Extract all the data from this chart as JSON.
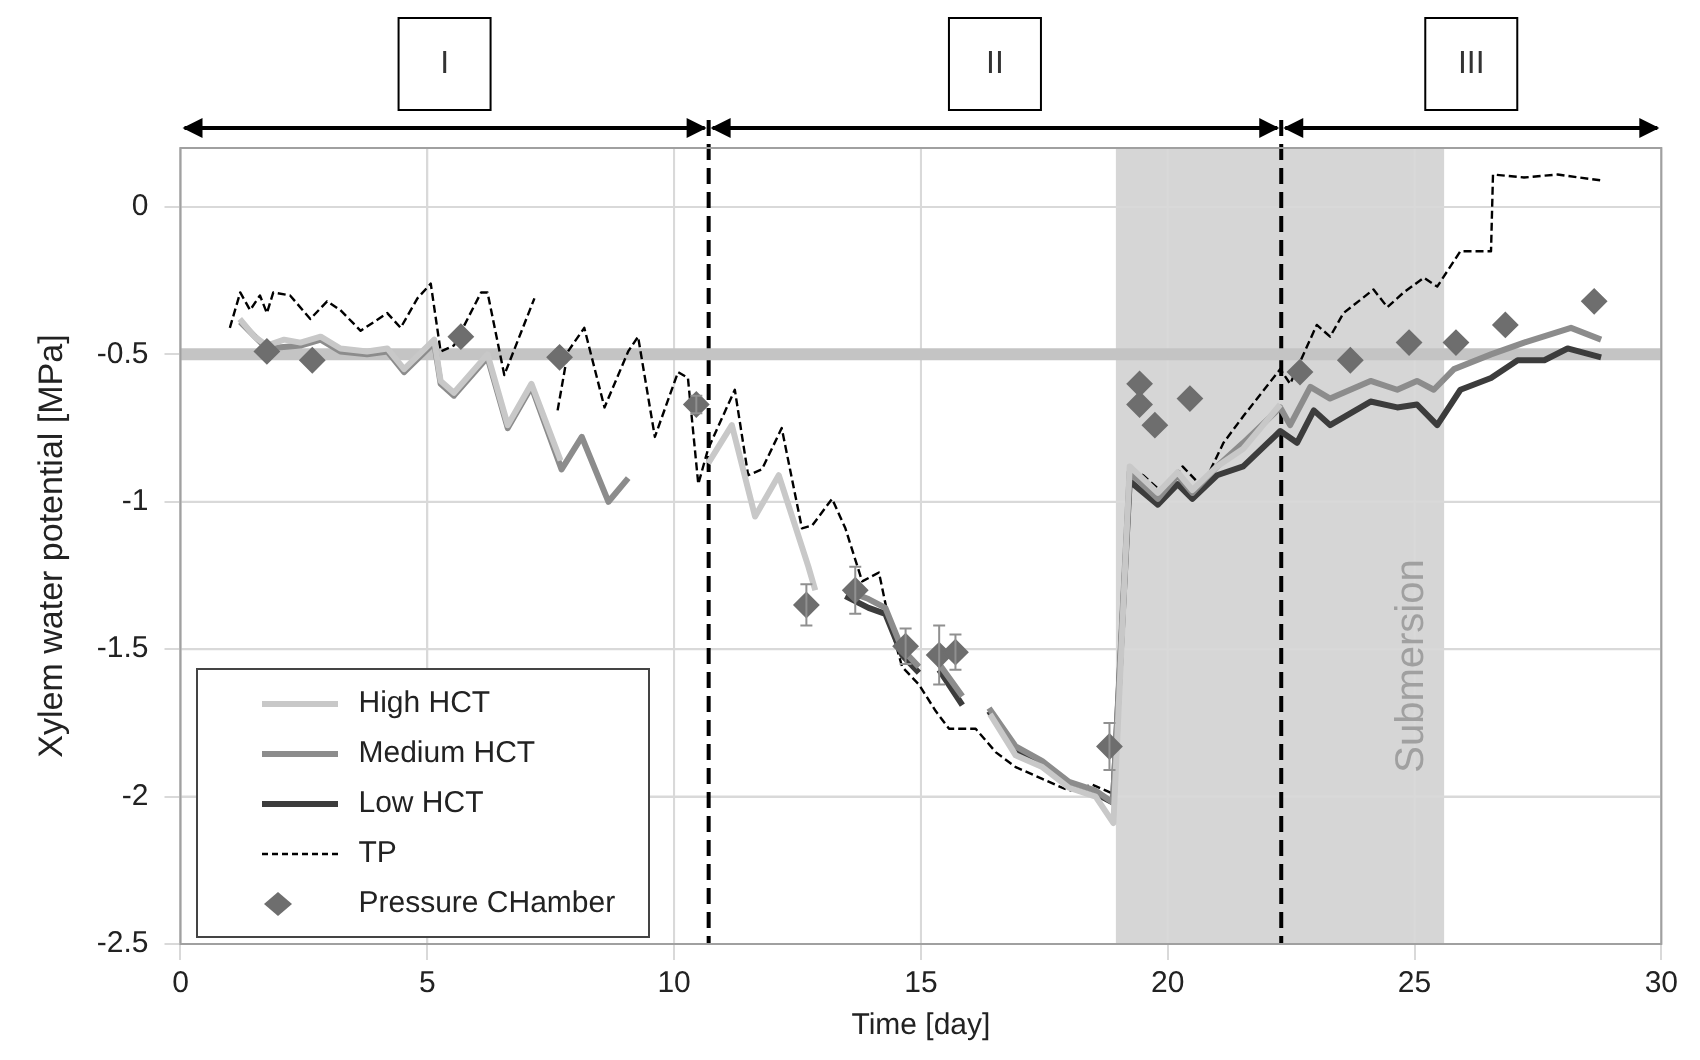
{
  "chart_data": {
    "type": "line",
    "xlabel": "Time [day]",
    "ylabel": "Xylem water potential [MPa]",
    "xlim": [
      0,
      30
    ],
    "xticks": [
      0,
      5,
      10,
      15,
      20,
      25,
      30
    ],
    "ylim": [
      -2.5,
      0.2
    ],
    "yticks": [
      -2.5,
      -2,
      -1.5,
      -1,
      -0.5,
      0
    ],
    "grid": true,
    "legend": "bottom left",
    "line_style": "solid",
    "marker": "none",
    "ref_lines": [
      {
        "axis": "x",
        "value": 10.7,
        "color": "#000000",
        "line_style": "dashed"
      },
      {
        "axis": "x",
        "value": 22.3,
        "color": "#000000",
        "line_style": "dashed"
      },
      {
        "axis": "y",
        "value": -0.5,
        "color": "#c4c4c4",
        "line_style": "solid"
      }
    ],
    "bands": [
      {
        "axis": "x",
        "from": 18.95,
        "to": 25.6,
        "label": "Submersion",
        "color": "#d6d6d6"
      }
    ],
    "annotations": [
      "I",
      "II",
      "III"
    ],
    "series": [
      {
        "name": "High HCT",
        "type": "line",
        "color": "#c8c8c8",
        "x": [
          1.2,
          1.5,
          1.75,
          2.1,
          2.43,
          2.84,
          3.24,
          3.78,
          4.19,
          4.53,
          5.14,
          5.27,
          5.54,
          6.22,
          6.63,
          7.11,
          7.45,
          7.7,
          7.75,
          10.69,
          11.17,
          11.64,
          12.12,
          12.72,
          12.86,
          12.9,
          16.4,
          16.92,
          17.46,
          18.0,
          18.54,
          18.9,
          19.23,
          19.8,
          20.2,
          20.5,
          21.0,
          21.53,
          22.28
        ],
        "values": [
          -0.38,
          -0.44,
          -0.47,
          -0.45,
          -0.46,
          -0.44,
          -0.48,
          -0.49,
          -0.48,
          -0.55,
          -0.45,
          -0.59,
          -0.63,
          -0.5,
          -0.74,
          -0.6,
          -0.75,
          -0.86,
          null,
          -0.87,
          -0.74,
          -1.05,
          -0.91,
          -1.22,
          -1.3,
          null,
          -1.72,
          -1.86,
          -1.9,
          -1.97,
          -2.0,
          -2.09,
          -0.88,
          -0.97,
          -0.9,
          -0.96,
          -0.88,
          -0.82,
          -0.67
        ]
      },
      {
        "name": "Medium HCT",
        "type": "line",
        "color": "#8c8c8c",
        "x": [
          1.21,
          1.75,
          2.43,
          2.84,
          3.24,
          3.78,
          4.19,
          4.53,
          5.14,
          5.27,
          5.54,
          6.22,
          6.63,
          7.11,
          7.72,
          8.13,
          8.67,
          9.07,
          9.1,
          13.47,
          13.94,
          14.28,
          14.62,
          14.96,
          15.0,
          15.37,
          15.84,
          15.9,
          16.38,
          16.92,
          17.46,
          18.0,
          18.54,
          18.89,
          19.23,
          19.8,
          20.2,
          20.5,
          21.0,
          21.53,
          22.28,
          22.48,
          22.89,
          23.29,
          24.11,
          24.65,
          25.05,
          25.39,
          25.8,
          26.55,
          27.22,
          28.17,
          28.78
        ],
        "values": [
          -0.39,
          -0.48,
          -0.47,
          -0.45,
          -0.49,
          -0.5,
          -0.49,
          -0.56,
          -0.46,
          -0.6,
          -0.64,
          -0.51,
          -0.75,
          -0.61,
          -0.89,
          -0.78,
          -1.0,
          -0.92,
          null,
          -1.3,
          -1.33,
          -1.36,
          -1.5,
          -1.56,
          null,
          -1.55,
          -1.66,
          null,
          -1.7,
          -1.83,
          -1.88,
          -1.95,
          -1.98,
          -2.02,
          -0.9,
          -0.99,
          -0.91,
          -0.97,
          -0.88,
          -0.8,
          -0.68,
          -0.74,
          -0.61,
          -0.65,
          -0.59,
          -0.62,
          -0.59,
          -0.62,
          -0.55,
          -0.5,
          -0.46,
          -0.41,
          -0.45
        ]
      },
      {
        "name": "Low HCT",
        "type": "line",
        "color": "#3c3c3c",
        "x": [
          13.47,
          13.94,
          14.28,
          14.62,
          14.96,
          15.0,
          15.37,
          15.84,
          15.9,
          16.38,
          16.92,
          17.46,
          18.0,
          18.54,
          18.89,
          19.23,
          19.8,
          20.2,
          20.5,
          21.0,
          21.53,
          22.28,
          22.62,
          22.96,
          23.29,
          24.11,
          24.65,
          25.05,
          25.46,
          25.93,
          26.55,
          27.09,
          27.63,
          28.1,
          28.78
        ],
        "values": [
          -1.32,
          -1.36,
          -1.38,
          -1.52,
          -1.58,
          null,
          -1.57,
          -1.69,
          null,
          -1.71,
          -1.85,
          -1.89,
          -1.96,
          -1.99,
          -2.02,
          -0.93,
          -1.01,
          -0.94,
          -0.99,
          -0.91,
          -0.88,
          -0.76,
          -0.8,
          -0.69,
          -0.74,
          -0.66,
          -0.68,
          -0.67,
          -0.74,
          -0.62,
          -0.58,
          -0.52,
          -0.52,
          -0.48,
          -0.51
        ]
      },
      {
        "name": "TP",
        "type": "line",
        "color": "#000000",
        "line_style": "dashed",
        "x": [
          1.0,
          1.21,
          1.41,
          1.61,
          1.75,
          1.88,
          2.22,
          2.63,
          2.97,
          3.24,
          3.65,
          4.19,
          4.46,
          4.8,
          5.07,
          5.27,
          5.54,
          6.09,
          6.22,
          6.56,
          7.17,
          7.4,
          7.64,
          7.85,
          8.18,
          8.59,
          9.07,
          9.27,
          9.61,
          10.08,
          10.28,
          10.49,
          10.69,
          11.23,
          11.5,
          11.78,
          12.18,
          12.59,
          12.8,
          13.2,
          13.47,
          13.81,
          14.15,
          14.35,
          14.62,
          14.96,
          15.3,
          15.57,
          16.11,
          16.52,
          16.92,
          17.46,
          18.0,
          18.48,
          18.89,
          19.23,
          19.5,
          19.9,
          20.3,
          20.7,
          21.13,
          21.53,
          22.28,
          22.48,
          23.02,
          23.29,
          23.56,
          24.17,
          24.45,
          24.78,
          25.19,
          25.46,
          25.93,
          26.55,
          26.59,
          27.22,
          27.9,
          28.78
        ],
        "values": [
          -0.41,
          -0.29,
          -0.35,
          -0.3,
          -0.36,
          -0.29,
          -0.3,
          -0.38,
          -0.32,
          -0.35,
          -0.42,
          -0.36,
          -0.41,
          -0.31,
          -0.26,
          -0.49,
          -0.47,
          -0.29,
          -0.29,
          -0.57,
          -0.31,
          null,
          -0.69,
          -0.49,
          -0.41,
          -0.68,
          -0.49,
          -0.44,
          -0.78,
          -0.56,
          -0.58,
          -0.94,
          -0.82,
          -0.62,
          -0.91,
          -0.89,
          -0.75,
          -1.09,
          -1.08,
          -0.99,
          -1.09,
          -1.27,
          -1.24,
          -1.4,
          -1.56,
          -1.62,
          -1.71,
          -1.77,
          -1.77,
          -1.85,
          -1.9,
          -1.94,
          -1.98,
          -1.96,
          -1.99,
          -0.89,
          -0.91,
          -0.97,
          -0.88,
          -0.95,
          -0.8,
          -0.71,
          -0.55,
          -0.6,
          -0.4,
          -0.44,
          -0.36,
          -0.28,
          -0.34,
          -0.29,
          -0.24,
          -0.27,
          -0.15,
          -0.15,
          0.11,
          0.1,
          0.11,
          0.09
        ]
      },
      {
        "name": "Pressure CHamber",
        "type": "scatter",
        "color": "#6e6e6e",
        "marker": "diamond",
        "x": [
          1.75,
          2.67,
          5.68,
          7.68,
          10.45,
          12.68,
          13.67,
          14.69,
          15.37,
          15.7,
          18.82,
          19.43,
          19.43,
          19.74,
          20.45,
          22.68,
          23.7,
          24.89,
          25.84,
          26.84,
          28.64
        ],
        "values": [
          -0.49,
          -0.52,
          -0.44,
          -0.51,
          -0.67,
          -1.35,
          -1.3,
          -1.49,
          -1.52,
          -1.51,
          -1.83,
          -0.6,
          -0.67,
          -0.74,
          -0.65,
          -0.56,
          -0.52,
          -0.46,
          -0.46,
          -0.4,
          -0.32
        ],
        "errors": [
          null,
          null,
          null,
          null,
          0.03,
          0.07,
          0.08,
          0.06,
          0.1,
          0.06,
          0.08,
          null,
          null,
          null,
          null,
          null,
          null,
          null,
          null,
          null,
          null
        ]
      }
    ]
  }
}
